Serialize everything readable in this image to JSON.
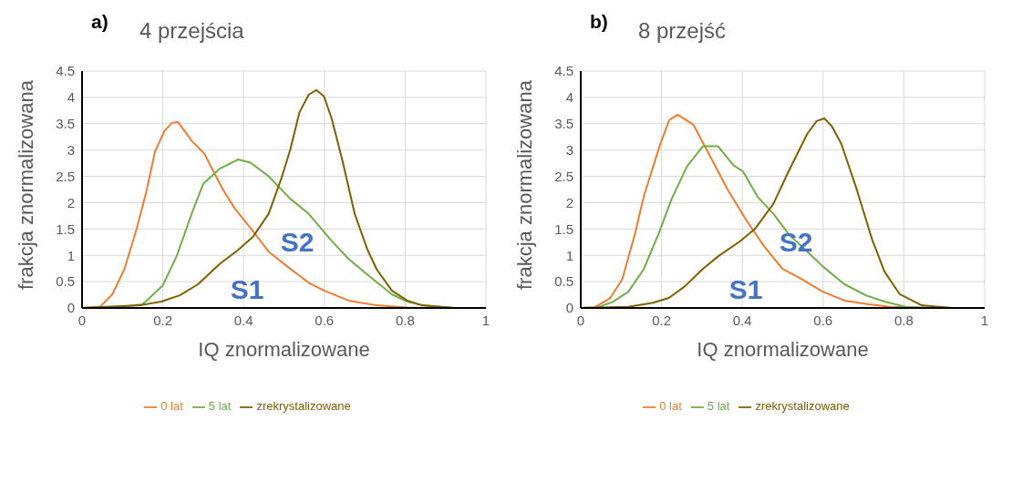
{
  "chart_data": [
    {
      "type": "line",
      "title": "4 przejścia",
      "xlabel": "IQ znormalizowane",
      "ylabel": "frakcja znormalizowana",
      "xlim": [
        0,
        1
      ],
      "xticks": [
        0,
        0.2,
        0.4,
        0.6,
        0.8,
        1
      ],
      "ylim": [
        0,
        4.5
      ],
      "yticks": [
        0,
        0.5,
        1,
        1.5,
        2,
        2.5,
        3,
        3.5,
        4,
        4.5
      ],
      "grid": true,
      "legend": "bottom",
      "marker": "none",
      "line_style": "solid",
      "annotations": [
        "a)",
        "S1",
        "S2"
      ],
      "series": [
        {
          "name": "0 lat",
          "color": "#ed7d31",
          "x": [
            0,
            0.044,
            0.075,
            0.105,
            0.135,
            0.158,
            0.181,
            0.204,
            0.223,
            0.238,
            0.272,
            0.303,
            0.325,
            0.348,
            0.379,
            0.424,
            0.462,
            0.508,
            0.561,
            0.599,
            0.66,
            0.729,
            0.805,
            0.88
          ],
          "values": [
            0,
            0.02,
            0.26,
            0.74,
            1.5,
            2.17,
            2.98,
            3.36,
            3.52,
            3.53,
            3.17,
            2.93,
            2.6,
            2.26,
            1.88,
            1.45,
            1.07,
            0.79,
            0.48,
            0.33,
            0.14,
            0.05,
            0.01,
            0
          ]
        },
        {
          "name": "5 lat",
          "color": "#70ad47",
          "x": [
            0,
            0.1,
            0.15,
            0.2,
            0.234,
            0.272,
            0.3,
            0.34,
            0.386,
            0.417,
            0.462,
            0.516,
            0.561,
            0.614,
            0.66,
            0.72,
            0.767,
            0.805,
            0.843,
            0.92
          ],
          "values": [
            0,
            0.02,
            0.07,
            0.43,
            0.98,
            1.8,
            2.36,
            2.64,
            2.82,
            2.76,
            2.5,
            2.07,
            1.79,
            1.31,
            0.93,
            0.55,
            0.26,
            0.12,
            0.05,
            0
          ]
        },
        {
          "name": "zrekrystalizowane",
          "color": "#7f6000",
          "x": [
            0,
            0.143,
            0.196,
            0.242,
            0.287,
            0.34,
            0.386,
            0.424,
            0.462,
            0.493,
            0.516,
            0.538,
            0.561,
            0.58,
            0.599,
            0.618,
            0.645,
            0.675,
            0.706,
            0.729,
            0.767,
            0.805,
            0.843,
            0.92
          ],
          "values": [
            0,
            0.05,
            0.12,
            0.24,
            0.45,
            0.83,
            1.1,
            1.36,
            1.79,
            2.45,
            3.02,
            3.71,
            4.05,
            4.14,
            4.02,
            3.6,
            2.79,
            1.79,
            1.12,
            0.74,
            0.33,
            0.14,
            0.05,
            0
          ]
        }
      ]
    },
    {
      "type": "line",
      "title": "8 przejść",
      "xlabel": "IQ znormalizowane",
      "ylabel": "frakcja znormalizowana",
      "xlim": [
        0,
        1
      ],
      "xticks": [
        0,
        0.2,
        0.4,
        0.6,
        0.8,
        1
      ],
      "ylim": [
        0,
        4.5
      ],
      "yticks": [
        0,
        0.5,
        1,
        1.5,
        2,
        2.5,
        3,
        3.5,
        4,
        4.5
      ],
      "grid": true,
      "legend": "bottom",
      "marker": "none",
      "line_style": "solid",
      "annotations": [
        "b)",
        "S1",
        "S2"
      ],
      "series": [
        {
          "name": "0 lat",
          "color": "#ed7d31",
          "x": [
            0,
            0.034,
            0.073,
            0.103,
            0.134,
            0.156,
            0.195,
            0.219,
            0.24,
            0.279,
            0.317,
            0.363,
            0.408,
            0.454,
            0.5,
            0.546,
            0.599,
            0.653,
            0.714,
            0.767,
            0.844
          ],
          "values": [
            0,
            0.01,
            0.19,
            0.55,
            1.4,
            2.12,
            3.07,
            3.57,
            3.67,
            3.48,
            2.93,
            2.26,
            1.69,
            1.17,
            0.74,
            0.55,
            0.31,
            0.14,
            0.07,
            0.02,
            0
          ]
        },
        {
          "name": "5 lat",
          "color": "#70ad47",
          "x": [
            0,
            0.042,
            0.08,
            0.118,
            0.156,
            0.195,
            0.225,
            0.263,
            0.302,
            0.34,
            0.378,
            0.401,
            0.439,
            0.477,
            0.515,
            0.561,
            0.599,
            0.653,
            0.706,
            0.752,
            0.805,
            0.882
          ],
          "values": [
            0,
            0.01,
            0.12,
            0.31,
            0.74,
            1.45,
            2.07,
            2.69,
            3.07,
            3.07,
            2.71,
            2.6,
            2.1,
            1.79,
            1.4,
            1.07,
            0.79,
            0.45,
            0.24,
            0.12,
            0.02,
            0
          ]
        },
        {
          "name": "zrekrystalizowane",
          "color": "#7f6000",
          "x": [
            0,
            0.118,
            0.179,
            0.218,
            0.256,
            0.302,
            0.34,
            0.393,
            0.431,
            0.477,
            0.515,
            0.561,
            0.584,
            0.603,
            0.622,
            0.645,
            0.683,
            0.721,
            0.752,
            0.79,
            0.844,
            0.92
          ],
          "values": [
            0,
            0.02,
            0.1,
            0.19,
            0.4,
            0.74,
            0.98,
            1.26,
            1.5,
            1.98,
            2.6,
            3.31,
            3.55,
            3.6,
            3.45,
            3.12,
            2.26,
            1.31,
            0.69,
            0.26,
            0.05,
            0
          ]
        }
      ]
    }
  ]
}
